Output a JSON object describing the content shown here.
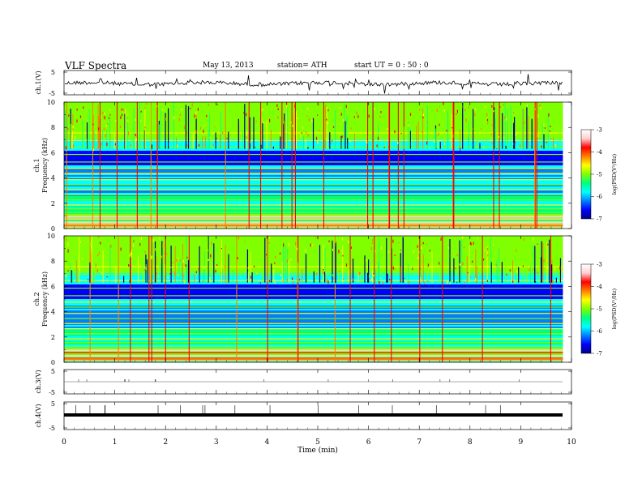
{
  "header": {
    "title": "VLF  Spectra",
    "date": "May 13, 2013",
    "station": "station= ATH",
    "start": "start  UT  =   0  : 50 : 0"
  },
  "chart_data": [
    {
      "type": "line",
      "name": "ch1-waveform",
      "ylabel": "ch.1(V)",
      "ylim": [
        -5,
        5
      ],
      "yticks": [
        "5",
        "-5"
      ],
      "level": 0
    },
    {
      "type": "heatmap",
      "name": "ch1-spectrogram",
      "ylabel": "ch.1\nFrequency (kHz)",
      "ylim": [
        0,
        10
      ],
      "yticks": [
        "0",
        "2",
        "4",
        "6",
        "8",
        "10"
      ]
    },
    {
      "type": "heatmap",
      "name": "ch2-spectrogram",
      "ylabel": "ch.2\nFrequency (kHz)",
      "ylim": [
        0,
        10
      ],
      "yticks": [
        "0",
        "2",
        "4",
        "6",
        "8",
        "10"
      ]
    },
    {
      "type": "line",
      "name": "ch3-waveform",
      "ylabel": "ch.3(V)",
      "ylim": [
        -5,
        5
      ],
      "yticks": [
        "5",
        "-5"
      ],
      "level": 0
    },
    {
      "type": "line",
      "name": "ch4-waveform",
      "ylabel": "ch.4(V)",
      "ylim": [
        -5,
        5
      ],
      "yticks": [
        "5",
        "-5"
      ],
      "level": 0
    }
  ],
  "xaxis": {
    "label": "Time  (min)",
    "xlim": [
      0,
      10
    ],
    "ticks": [
      "0",
      "1",
      "2",
      "3",
      "4",
      "5",
      "6",
      "7",
      "8",
      "9",
      "10"
    ],
    "data_end": 9.83
  },
  "colorbar": {
    "label": "log(PSD(V²/Hz)",
    "range": [
      -7,
      -3
    ],
    "ticks": [
      "-3",
      "-4",
      "-5",
      "-6",
      "-7"
    ],
    "colors": [
      "#000080",
      "#0000ff",
      "#0080ff",
      "#00ffff",
      "#00ff80",
      "#80ff00",
      "#ffff00",
      "#ff8000",
      "#ff0000",
      "#ffd0d0",
      "#ffffff"
    ]
  }
}
